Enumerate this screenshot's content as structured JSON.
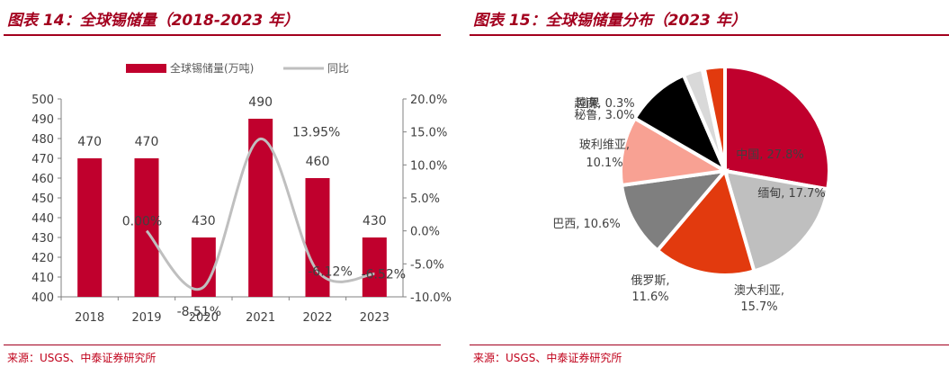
{
  "left": {
    "title": "图表 14：全球锡储量（2018-2023 年）",
    "source": "来源：USGS、中泰证券研究所"
  },
  "right": {
    "title": "图表 15：全球锡储量分布（2023 年）",
    "source": "来源：USGS、中泰证券研究所"
  },
  "colors": {
    "brand": "#a3001e",
    "bar": "#c0002d",
    "line": "#bfbfbf"
  },
  "chart_data": [
    {
      "type": "bar",
      "title": "全球锡储量（2018-2023 年）",
      "categories": [
        "2018",
        "2019",
        "2020",
        "2021",
        "2022",
        "2023"
      ],
      "series": [
        {
          "name": "全球锡储量(万吨)",
          "kind": "bar",
          "axis": "left",
          "values": [
            470,
            470,
            430,
            490,
            460,
            430
          ],
          "labels": [
            "470",
            "470",
            "430",
            "490",
            "460",
            "430"
          ]
        },
        {
          "name": "同比",
          "kind": "line",
          "axis": "right",
          "values": [
            null,
            0.0,
            -8.51,
            13.95,
            -6.12,
            -6.52
          ],
          "labels": [
            "",
            "0.00%",
            "-8.51%",
            "13.95%",
            "-6.12%",
            "-6.52%"
          ]
        }
      ],
      "ylim": [
        400,
        500
      ],
      "yticks": [
        "500",
        "490",
        "480",
        "470",
        "460",
        "450",
        "440",
        "430",
        "420",
        "410",
        "400"
      ],
      "y2lim": [
        -10,
        20
      ],
      "y2ticks": [
        "20.0%",
        "15.0%",
        "10.0%",
        "5.0%",
        "0.0%",
        "-5.0%",
        "-10.0%"
      ],
      "legend": [
        "全球锡储量(万吨)",
        "同比"
      ],
      "legend_position": "top-center"
    },
    {
      "type": "pie",
      "title": "全球锡储量分布（2023 年）",
      "slices": [
        {
          "name": "中国",
          "value": 27.8,
          "label": "中国, 27.8%",
          "color": "#c0002d"
        },
        {
          "name": "缅甸",
          "value": 17.7,
          "label": "缅甸, 17.7%",
          "color": "#bfbfbf"
        },
        {
          "name": "澳大利亚",
          "value": 15.7,
          "label": "澳大利亚,",
          "label2": "15.7%",
          "color": "#e23a0e"
        },
        {
          "name": "俄罗斯",
          "value": 11.6,
          "label": "俄罗斯,",
          "label2": "11.6%",
          "color": "#7f7f7f"
        },
        {
          "name": "巴西",
          "value": 10.6,
          "label": "巴西, 10.6%",
          "color": "#f8a193"
        },
        {
          "name": "玻利维亚",
          "value": 10.1,
          "label": "玻利维亚,",
          "label2": "10.1%",
          "color": "#000000"
        },
        {
          "name": "秘鲁",
          "value": 3.0,
          "label": "秘鲁, 3.0%",
          "color": "#d9d9d9"
        },
        {
          "name": "越南",
          "value": 0.3,
          "label": "越南, 0.3%",
          "color": "#404040"
        },
        {
          "name": "刚果",
          "value": 3.2,
          "label": "刚果",
          "color": "#e23a0e"
        }
      ]
    }
  ]
}
